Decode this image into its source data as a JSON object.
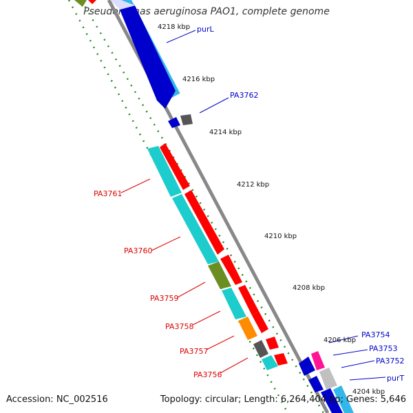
{
  "header": {
    "title": "Pseudomonas aeruginosa PAO1, complete genome"
  },
  "footer": {
    "accession": "Accession: NC_002516",
    "summary": "Topology: circular; Length: 6,264,404 bp; Genes: 5,646"
  },
  "ticks": [
    "4218 kbp",
    "4216 kbp",
    "4214 kbp",
    "4212 kbp",
    "4210 kbp",
    "4208 kbp",
    "4206 kbp",
    "4204 kbp"
  ],
  "gene_labels": {
    "purL": "purL",
    "PA3762": "PA3762",
    "PA3761": "PA3761",
    "PA3760": "PA3760",
    "PA3759": "PA3759",
    "PA3758": "PA3758",
    "PA3757": "PA3757",
    "PA3756": "PA3756",
    "PA3754": "PA3754",
    "PA3753": "PA3753",
    "PA3752": "PA3752",
    "purT": "purT"
  },
  "colors": {
    "forward_label": "#0000cc",
    "reverse_label": "#dd0000",
    "backbone": "#888888",
    "tick_dash": "#117711"
  }
}
